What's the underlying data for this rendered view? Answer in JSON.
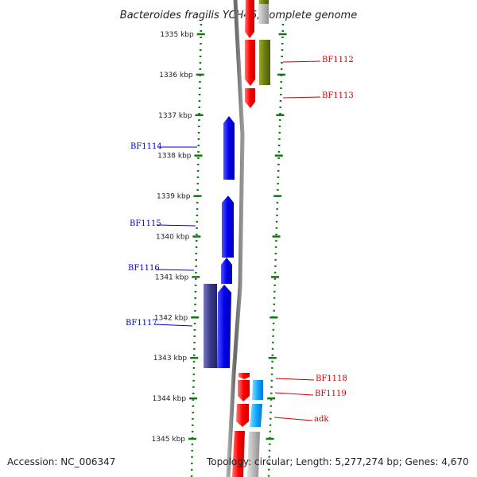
{
  "title": "Bacteroides fragilis YCH46, complete genome",
  "footer": {
    "accession": "Accession: NC_006347",
    "topology": "Topology: circular; Length: 5,277,274 bp; Genes: 4,670"
  },
  "ticks": [
    "1335 kbp",
    "1336 kbp",
    "1337 kbp",
    "1338 kbp",
    "1339 kbp",
    "1340 kbp",
    "1341 kbp",
    "1342 kbp",
    "1343 kbp",
    "1344 kbp",
    "1345 kbp"
  ],
  "genes_left": [
    {
      "name": "BF1114",
      "color": "#0000cc"
    },
    {
      "name": "BF1115",
      "color": "#0000cc"
    },
    {
      "name": "BF1116",
      "color": "#0000cc"
    },
    {
      "name": "BF1117",
      "color": "#0000cc"
    }
  ],
  "genes_right": [
    {
      "name": "BF1112",
      "color": "#cc0000"
    },
    {
      "name": "BF1113",
      "color": "#cc0000"
    },
    {
      "name": "BF1118",
      "color": "#cc0000"
    },
    {
      "name": "BF1119",
      "color": "#cc0000"
    },
    {
      "name": "adk",
      "color": "#cc0000"
    }
  ],
  "colors": {
    "forward_gene": "#0000ff",
    "forward_other": "#3a3a8a",
    "reverse_gene": "#ff0000",
    "reverse_other": "#6b7d10",
    "rna": "#11aaff",
    "unknown": "#b0b0b0",
    "ruler": "#117711",
    "backbone": "#777777"
  }
}
